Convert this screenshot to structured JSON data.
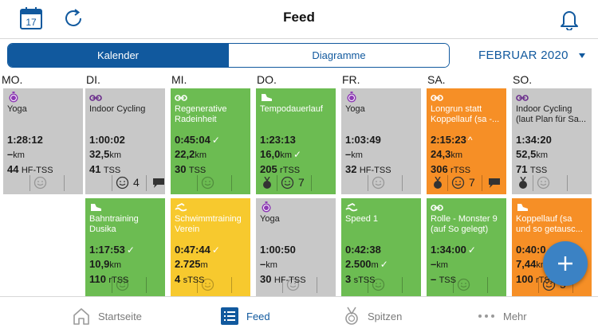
{
  "header": {
    "title": "Feed",
    "calendar_day": "17",
    "icons": [
      "calendar-icon",
      "refresh-icon",
      "bell-icon"
    ]
  },
  "toolbar": {
    "tabs": [
      {
        "label": "Kalender",
        "active": true
      },
      {
        "label": "Diagramme",
        "active": false
      }
    ],
    "month_label": "FEBRUAR 2020"
  },
  "days": [
    "MO.",
    "DI.",
    "MI.",
    "DO.",
    "FR.",
    "SA.",
    "SO."
  ],
  "colors": {
    "brand": "#11599e",
    "fab": "#3b82c4",
    "completed": "#6cbc52",
    "partial": "#f68f26",
    "short": "#f7c92e",
    "planned": "#c8c8c8"
  },
  "week1": [
    {
      "sport": "yoga",
      "title": "Yoga",
      "duration": "1:28:12",
      "distance": "–",
      "distance_unit": "km",
      "tss": "44",
      "tss_unit": "HF-TSS",
      "color": "gray"
    },
    {
      "sport": "bike",
      "title": "Indoor Cycling",
      "duration": "1:00:02",
      "distance": "32,5",
      "distance_unit": "km",
      "tss": "41",
      "tss_unit": "TSS",
      "color": "gray",
      "feel": "4",
      "comment": true
    },
    {
      "sport": "bike",
      "title": "Regenerative Radeinheit",
      "duration": "0:45:04",
      "duration_mark": "✓",
      "distance": "22,2",
      "distance_unit": "km",
      "tss": "30",
      "tss_unit": "TSS",
      "color": "green"
    },
    {
      "sport": "run",
      "title": "Tempodauerlauf",
      "duration": "1:23:13",
      "distance": "16,0",
      "distance_unit": "km",
      "distance_mark": "✓",
      "tss": "205",
      "tss_unit": "rTSS",
      "color": "green",
      "feel": "7",
      "medal": true
    },
    {
      "sport": "yoga",
      "title": "Yoga",
      "duration": "1:03:49",
      "distance": "–",
      "distance_unit": "km",
      "tss": "32",
      "tss_unit": "HF-TSS",
      "color": "gray"
    },
    {
      "sport": "bike",
      "title": "Longrun statt Koppellauf (sa -...",
      "duration": "2:15:23",
      "duration_mark": "^",
      "distance": "24,3",
      "distance_unit": "km",
      "tss": "306",
      "tss_unit": "rTSS",
      "color": "orange",
      "feel": "7",
      "medal": true,
      "comment": true
    },
    {
      "sport": "bike",
      "title": "Indoor Cycling (laut Plan für Sa...",
      "duration": "1:34:20",
      "distance": "52,5",
      "distance_unit": "km",
      "tss": "71",
      "tss_unit": "TSS",
      "color": "gray",
      "medal": true
    }
  ],
  "week2": [
    {
      "sport": "run",
      "title": "Bahntraining Dusika",
      "duration": "1:17:53",
      "duration_mark": "✓",
      "distance": "10,9",
      "distance_unit": "km",
      "tss": "110",
      "tss_unit": "rTSS",
      "color": "green"
    },
    {
      "sport": "swim",
      "title": "Schwimmtraining Verein",
      "duration": "0:47:44",
      "duration_mark": "✓",
      "distance": "2.725",
      "distance_unit": "m",
      "tss": "4",
      "tss_unit": "sTSS",
      "color": "yellow"
    },
    {
      "sport": "yoga",
      "title": "Yoga",
      "duration": "1:00:50",
      "distance": "–",
      "distance_unit": "km",
      "tss": "30",
      "tss_unit": "HF-TSS",
      "color": "gray"
    },
    {
      "sport": "swim",
      "title": "Speed 1",
      "duration": "0:42:38",
      "distance": "2.500",
      "distance_unit": "m",
      "distance_mark": "✓",
      "tss": "3",
      "tss_unit": "sTSS",
      "color": "green"
    },
    {
      "sport": "bike",
      "title": "Rolle - Monster 9 (auf So gelegt)",
      "duration": "1:34:00",
      "duration_mark": "✓",
      "distance": "–",
      "distance_unit": "km",
      "tss": "–",
      "tss_unit": "TSS",
      "color": "green"
    },
    {
      "sport": "run",
      "title": "Koppellauf (sa und so getausc...",
      "duration": "0:40:0",
      "distance": "7,44",
      "distance_unit": "km",
      "tss": "100",
      "tss_unit": "rTSS",
      "color": "orange",
      "feel": "5"
    }
  ],
  "tabbar": [
    {
      "label": "Startseite",
      "icon": "home-icon",
      "active": false
    },
    {
      "label": "Feed",
      "icon": "list-icon",
      "active": true
    },
    {
      "label": "Spitzen",
      "icon": "medal-icon",
      "active": false
    },
    {
      "label": "Mehr",
      "icon": "more-icon",
      "active": false
    }
  ]
}
